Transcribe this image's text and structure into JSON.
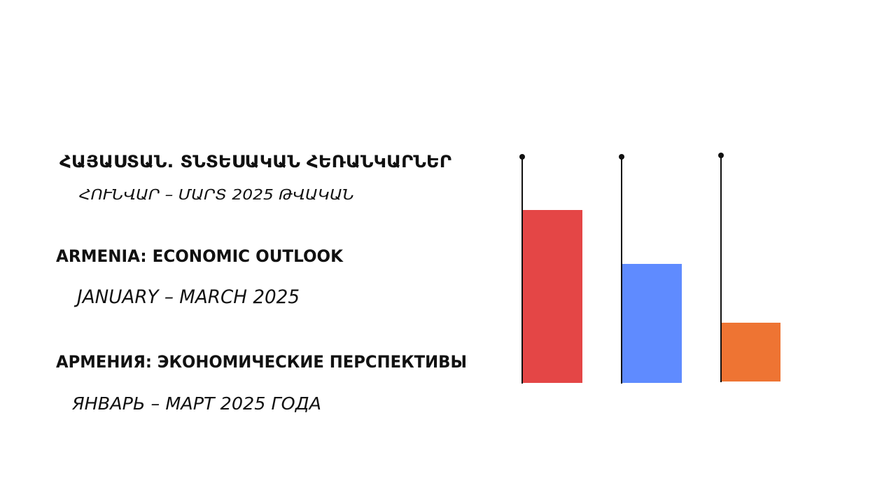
{
  "slide": {
    "blocks": [
      {
        "heading": "ՀԱՅԱՍՏԱՆ. ՏՆՏԵՍԱԿԱՆ ՀԵՌԱՆԿԱՐՆԵՐ",
        "subheading": "ՀՈՒՆՎԱՐ – ՄԱՐՏ 2025 ԹՎԱԿԱՆ"
      },
      {
        "heading": "ARMENIA: ECONOMIC OUTLOOK",
        "subheading": "JANUARY – MARCH 2025"
      },
      {
        "heading": "АРМЕНИЯ: ЭКОНОМИЧЕСКИЕ ПЕРСПЕКТИВЫ",
        "subheading": "ЯНВАРЬ – МАРТ 2025 ГОДА"
      }
    ]
  }
}
